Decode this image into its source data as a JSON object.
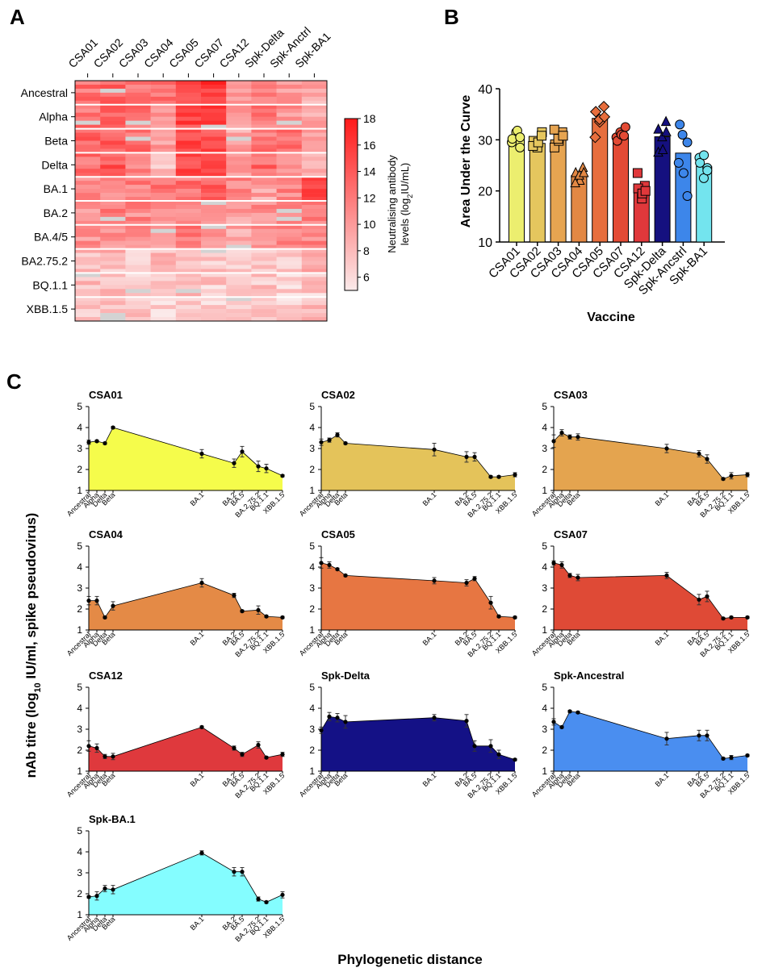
{
  "panels": {
    "a": "A",
    "b": "B",
    "c": "C"
  },
  "chart_data": [
    {
      "panel": "A",
      "type": "heatmap",
      "columns": [
        "CSA01",
        "CSA02",
        "CSA03",
        "CSA04",
        "CSA05",
        "CSA07",
        "CSA12",
        "Spk-Delta",
        "Spk-Anctrl",
        "Spk-BA1"
      ],
      "row_groups": [
        "Ancestral",
        "Alpha",
        "Beta",
        "Delta",
        "BA.1",
        "BA.2",
        "BA.4/5",
        "BA2.75.2",
        "BQ.1.1",
        "XBB.1.5"
      ],
      "group_means": [
        [
          12.5,
          13.0,
          11.5,
          12.0,
          15.5,
          16.0,
          9.5,
          11.5,
          10.5,
          9.0
        ],
        [
          12.5,
          13.0,
          12.5,
          11.0,
          15.0,
          15.5,
          9.5,
          12.0,
          10.5,
          9.5
        ],
        [
          13.5,
          13.5,
          13.0,
          10.0,
          15.5,
          14.5,
          9.5,
          12.0,
          12.5,
          10.0
        ],
        [
          12.5,
          14.0,
          12.0,
          8.0,
          14.5,
          14.0,
          9.5,
          13.0,
          11.5,
          9.5
        ],
        [
          10.5,
          11.5,
          11.5,
          12.0,
          12.5,
          13.5,
          11.0,
          9.5,
          11.0,
          14.5
        ],
        [
          10.5,
          11.5,
          11.0,
          10.5,
          11.5,
          11.0,
          9.5,
          10.5,
          11.0,
          12.0
        ],
        [
          10.5,
          11.0,
          10.5,
          10.0,
          12.0,
          10.5,
          9.0,
          10.5,
          11.0,
          11.5
        ],
        [
          8.0,
          8.0,
          7.0,
          8.0,
          8.0,
          7.0,
          7.0,
          8.0,
          7.0,
          8.5
        ],
        [
          7.5,
          7.5,
          7.0,
          6.5,
          7.5,
          7.0,
          7.0,
          7.5,
          6.5,
          7.0
        ],
        [
          7.0,
          7.5,
          7.0,
          6.5,
          6.5,
          7.0,
          7.0,
          7.0,
          6.5,
          7.5
        ]
      ],
      "missing_value_color": "#d3d3d3",
      "colorbar": {
        "min": 5,
        "max": 18,
        "ticks": [
          6,
          8,
          10,
          12,
          14,
          16,
          18
        ],
        "low_color": "#fbeaea",
        "high_color": "#ff1a1a"
      },
      "colorbar_label_line1": "Neutralising antibody",
      "colorbar_label_pre": "levels (log",
      "colorbar_label_sub": "2",
      "colorbar_label_post": "IU/mL)"
    },
    {
      "panel": "B",
      "type": "bar",
      "categories": [
        "CSA01",
        "CSA02",
        "CSA03",
        "CSA04",
        "CSA05",
        "CSA07",
        "CSA12",
        "Spk-Delta",
        "Spk-Ancstrl",
        "Spk-BA1"
      ],
      "values": [
        30.2,
        29.3,
        30.0,
        23.0,
        34.2,
        31.0,
        20.5,
        30.6,
        27.4,
        24.8
      ],
      "points": [
        [
          29.5,
          31.5,
          28.5,
          30.2,
          31.8,
          30.5
        ],
        [
          29.8,
          28.5,
          31.5,
          28.8,
          29.5,
          30.8
        ],
        [
          28.5,
          29.8,
          31.5,
          32.0,
          30.2,
          30.8
        ],
        [
          23.5,
          22.0,
          24.5,
          21.5,
          23.0,
          23.5
        ],
        [
          35.5,
          33.5,
          36.5,
          30.5,
          34.0,
          34.5
        ],
        [
          30.5,
          31.5,
          32.5,
          29.8,
          31.0,
          30.8
        ],
        [
          23.5,
          18.5,
          21.0,
          20.5,
          19.5,
          20.0
        ],
        [
          32.0,
          30.5,
          33.5,
          27.5,
          28.0,
          31.5
        ],
        [
          33.0,
          31.0,
          29.5,
          25.5,
          23.5,
          19.0
        ],
        [
          26.5,
          22.5,
          24.5,
          25.5,
          27.0,
          24.0
        ]
      ],
      "marker_shapes": [
        "circle",
        "square",
        "square",
        "triangle",
        "diamond",
        "circle",
        "square",
        "triangle",
        "circle",
        "circle"
      ],
      "colors": [
        "#ecee6f",
        "#e5c65e",
        "#e6a451",
        "#e38844",
        "#e76e3d",
        "#e34b35",
        "#e0383b",
        "#15107f",
        "#3d86ea",
        "#73e4ee"
      ],
      "xlabel": "Vaccine",
      "ylabel": "Area Under the Curve",
      "ylim": [
        10,
        40
      ],
      "yticks": [
        10,
        20,
        30,
        40
      ]
    },
    {
      "panel": "C",
      "type": "area",
      "x": [
        "Ancestral",
        "Alpha",
        "Delta",
        "Beta",
        "BA.1",
        "BA.2",
        "BA.5",
        "BA.2.75.2",
        "BQ.1.1",
        "XBB.1.5"
      ],
      "x_positions": [
        0,
        1,
        2,
        3,
        14,
        18,
        19,
        21,
        22,
        24
      ],
      "ylim": [
        1,
        5
      ],
      "yticks": [
        1,
        2,
        3,
        4,
        5
      ],
      "xlabel": "Phylogenetic distance",
      "ylabel_pre": "nAb titre (log",
      "ylabel_sub": "10",
      "ylabel_post": " IU/ml, spike pseudovirus)",
      "series": [
        {
          "name": "CSA01",
          "color": "#f5fc4b",
          "values": [
            3.3,
            3.35,
            3.25,
            4.0,
            2.75,
            2.3,
            2.85,
            2.15,
            2.05,
            1.7
          ],
          "err": [
            0.1,
            0.05,
            0.05,
            0.05,
            0.2,
            0.2,
            0.25,
            0.25,
            0.2,
            0.05
          ]
        },
        {
          "name": "CSA02",
          "color": "#e4c35a",
          "values": [
            3.3,
            3.4,
            3.65,
            3.25,
            2.95,
            2.6,
            2.6,
            1.65,
            1.65,
            1.75
          ],
          "err": [
            0.15,
            0.1,
            0.1,
            0.05,
            0.3,
            0.25,
            0.2,
            0.05,
            0.05,
            0.1
          ]
        },
        {
          "name": "CSA03",
          "color": "#e4a44f",
          "values": [
            3.35,
            3.75,
            3.55,
            3.55,
            3.0,
            2.75,
            2.5,
            1.55,
            1.7,
            1.75
          ],
          "err": [
            0.3,
            0.15,
            0.1,
            0.15,
            0.2,
            0.15,
            0.2,
            0.05,
            0.15,
            0.1
          ]
        },
        {
          "name": "CSA04",
          "color": "#e48a46",
          "values": [
            2.4,
            2.4,
            1.6,
            2.15,
            3.25,
            2.65,
            1.9,
            1.95,
            1.65,
            1.6
          ],
          "err": [
            0.2,
            0.2,
            0.05,
            0.2,
            0.2,
            0.1,
            0.05,
            0.2,
            0.05,
            0.05
          ]
        },
        {
          "name": "CSA05",
          "color": "#e77642",
          "values": [
            4.2,
            4.1,
            3.9,
            3.6,
            3.35,
            3.25,
            3.45,
            2.3,
            1.65,
            1.6
          ],
          "err": [
            0.25,
            0.15,
            0.05,
            0.05,
            0.15,
            0.15,
            0.1,
            0.3,
            0.05,
            0.05
          ]
        },
        {
          "name": "CSA07",
          "color": "#df4a36",
          "values": [
            4.2,
            4.1,
            3.6,
            3.5,
            3.6,
            2.45,
            2.6,
            1.55,
            1.6,
            1.6
          ],
          "err": [
            0.1,
            0.15,
            0.1,
            0.15,
            0.15,
            0.25,
            0.25,
            0.05,
            0.05,
            0.05
          ]
        },
        {
          "name": "CSA12",
          "color": "#df393d",
          "values": [
            2.2,
            2.1,
            1.7,
            1.7,
            3.1,
            2.1,
            1.8,
            2.25,
            1.65,
            1.8
          ],
          "err": [
            0.25,
            0.2,
            0.1,
            0.15,
            0.05,
            0.1,
            0.1,
            0.15,
            0.05,
            0.1
          ]
        },
        {
          "name": "Spk-Delta",
          "color": "#141186",
          "values": [
            2.95,
            3.6,
            3.55,
            3.35,
            3.55,
            3.4,
            2.2,
            2.2,
            1.8,
            1.55
          ],
          "err": [
            0.15,
            0.2,
            0.2,
            0.3,
            0.15,
            0.3,
            0.25,
            0.3,
            0.2,
            0.05
          ]
        },
        {
          "name": "Spk-Ancestral",
          "color": "#4a8ef0",
          "values": [
            3.35,
            3.1,
            3.85,
            3.8,
            2.55,
            2.7,
            2.7,
            1.6,
            1.65,
            1.75
          ],
          "err": [
            0.15,
            0.05,
            0.05,
            0.05,
            0.3,
            0.25,
            0.25,
            0.05,
            0.1,
            0.05
          ]
        },
        {
          "name": "Spk-BA.1",
          "color": "#84fdff",
          "values": [
            1.85,
            1.9,
            2.25,
            2.2,
            3.95,
            3.05,
            3.05,
            1.75,
            1.6,
            1.95
          ],
          "err": [
            0.05,
            0.2,
            0.15,
            0.2,
            0.1,
            0.2,
            0.2,
            0.1,
            0.05,
            0.15
          ]
        }
      ]
    }
  ]
}
